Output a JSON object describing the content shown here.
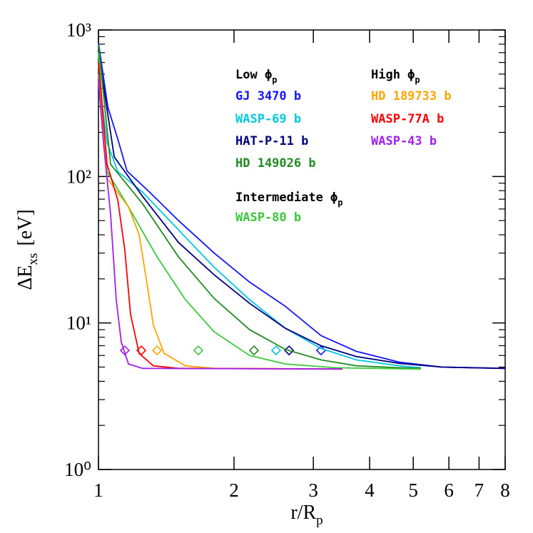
{
  "chart_data": {
    "type": "line",
    "xlabel": {
      "main": "r/R",
      "sub": "p"
    },
    "ylabel": {
      "main": "ΔE",
      "sub": "xs",
      "unit": "[eV]"
    },
    "xscale": "log",
    "yscale": "log",
    "xlim": [
      1,
      8
    ],
    "ylim": [
      1,
      1000
    ],
    "xticks": [
      1,
      2,
      3,
      4,
      5,
      6,
      7,
      8
    ],
    "yticks": [
      {
        "value": 1,
        "label": "10⁰"
      },
      {
        "value": 10,
        "label": "10¹"
      },
      {
        "value": 100,
        "label": "10²"
      },
      {
        "value": 1000,
        "label": "10³"
      }
    ],
    "yminorticks": [
      2,
      3,
      4,
      5,
      6,
      7,
      8,
      9,
      20,
      30,
      40,
      50,
      60,
      70,
      80,
      90,
      200,
      300,
      400,
      500,
      600,
      700,
      800,
      900
    ],
    "legend_headings": [
      {
        "text": "Low ϕ",
        "sub": "p"
      },
      {
        "text": "Intermediate ϕ",
        "sub": "p"
      },
      {
        "text": "High ϕ",
        "sub": "p"
      }
    ],
    "series": [
      {
        "name": "GJ 3470 b",
        "color": "#1414ff",
        "x": [
          1,
          1.049,
          1.104,
          1.157,
          1.3,
          1.505,
          1.807,
          2.166,
          2.6,
          3.12,
          3.74,
          4.66,
          5.8,
          8
        ],
        "values": [
          820,
          298,
          180,
          109,
          78,
          50,
          30,
          19,
          13,
          8.2,
          6.4,
          5.4,
          5.0,
          4.9
        ],
        "marker": {
          "x": 3.12,
          "y": 6.5
        }
      },
      {
        "name": "WASP-69 b",
        "color": "#00c8e0",
        "x": [
          1,
          1.045,
          1.104,
          1.254,
          1.807,
          2.166,
          2.6,
          3.12,
          3.74,
          4.66,
          5.2
        ],
        "values": [
          500,
          170,
          108,
          78,
          24,
          14.4,
          9.2,
          6.7,
          5.6,
          5.1,
          4.95
        ],
        "marker": {
          "x": 2.48,
          "y": 6.5
        }
      },
      {
        "name": "HAT-P-11 b",
        "color": "#000080",
        "x": [
          1,
          1.084,
          1.254,
          1.505,
          1.807,
          2.166,
          2.6,
          3.12,
          3.74,
          4.66,
          5.8,
          8
        ],
        "values": [
          700,
          136,
          73,
          35.5,
          21.3,
          13.6,
          9.2,
          7.0,
          5.9,
          5.3,
          5.0,
          4.9
        ],
        "marker": {
          "x": 2.65,
          "y": 6.5
        }
      },
      {
        "name": "HD 149026 b",
        "color": "#228b22",
        "x": [
          1,
          1.064,
          1.254,
          1.505,
          1.807,
          2.166,
          2.6,
          3.12,
          3.74,
          4.66,
          5.2
        ],
        "values": [
          800,
          121,
          65,
          28.3,
          14.7,
          9.0,
          6.6,
          5.6,
          5.1,
          4.95,
          4.9
        ],
        "marker": {
          "x": 2.215,
          "y": 6.5
        }
      },
      {
        "name": "WASP-80 b",
        "color": "#3cc83c",
        "x": [
          1,
          1.045,
          1.166,
          1.349,
          1.56,
          1.807,
          2.166,
          2.6,
          3.36,
          5.2
        ],
        "values": [
          700,
          108,
          62,
          28.3,
          14.4,
          8.7,
          6.0,
          5.25,
          4.95,
          4.85
        ],
        "marker": {
          "x": 1.666,
          "y": 6.5
        }
      },
      {
        "name": "HD 189733 b",
        "color": "#ffa500",
        "x": [
          1,
          1.045,
          1.166,
          1.231,
          1.277,
          1.324,
          1.399,
          1.56,
          1.807,
          3.48
        ],
        "values": [
          600,
          97,
          62,
          40,
          20,
          9.7,
          6.2,
          5.1,
          4.9,
          4.85
        ],
        "marker": {
          "x": 1.349,
          "y": 6.5
        }
      },
      {
        "name": "WASP-77A b",
        "color": "#ff0000",
        "x": [
          1,
          1.045,
          1.104,
          1.144,
          1.178,
          1.231,
          1.324,
          1.505,
          3.48
        ],
        "values": [
          600,
          121,
          69,
          31.6,
          11.5,
          6.2,
          5.1,
          4.9,
          4.85
        ],
        "marker": {
          "x": 1.245,
          "y": 6.5
        }
      },
      {
        "name": "WASP-43 b",
        "color": "#a020f0",
        "x": [
          1,
          1.026,
          1.064,
          1.095,
          1.124,
          1.166,
          1.254,
          3.48
        ],
        "values": [
          450,
          170,
          55,
          14.4,
          7.4,
          5.25,
          4.9,
          4.85
        ],
        "marker": {
          "x": 1.144,
          "y": 6.5
        }
      }
    ]
  }
}
